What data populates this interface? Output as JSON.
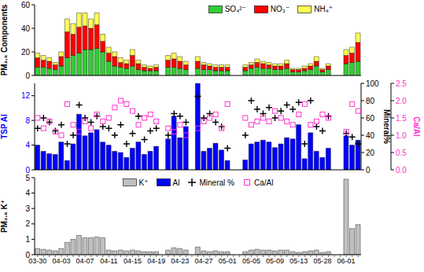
{
  "chart_data": [
    {
      "type": "bar",
      "stacked": true,
      "legend": "upper right",
      "tick_labels": "y",
      "grid": false,
      "ylabel": "PM₂.₅ Components",
      "ylim": [
        0,
        60
      ],
      "yticks": [
        0,
        20,
        40,
        60
      ],
      "categories": [
        "03-30",
        null,
        null,
        null,
        "04-03",
        null,
        null,
        null,
        "04-07",
        null,
        null,
        null,
        "04-11",
        null,
        null,
        null,
        "04-15",
        null,
        null,
        null,
        "04-19",
        null,
        null,
        null,
        "04-23",
        null,
        null,
        null,
        "04-27",
        null,
        null,
        null,
        "05-01",
        null,
        null,
        null,
        "05-05",
        null,
        null,
        null,
        "05-09",
        null,
        null,
        null,
        "05-13",
        null,
        null,
        null,
        "05-28",
        null,
        null,
        null,
        "06-01",
        null,
        null
      ],
      "series": [
        {
          "name": "SO₄²⁻",
          "color": "#33cc33",
          "values": [
            7,
            7,
            6,
            5,
            8,
            15,
            17,
            19,
            22,
            22,
            23,
            20,
            12,
            8,
            7,
            6,
            8,
            5,
            4,
            4,
            4,
            null,
            7,
            7,
            6,
            5,
            null,
            6,
            5,
            5,
            4,
            4,
            4,
            null,
            null,
            4,
            6,
            7,
            6,
            6,
            5,
            5,
            6,
            3,
            3,
            4,
            5,
            8,
            3,
            5,
            null,
            null,
            10,
            11,
            12
          ]
        },
        {
          "name": "NO₃⁻",
          "color": "#ff0000",
          "values": [
            8,
            6,
            6,
            4,
            8,
            22,
            18,
            22,
            20,
            18,
            20,
            9,
            7,
            8,
            4,
            4,
            9,
            5,
            3,
            2,
            3,
            null,
            6,
            7,
            6,
            4,
            null,
            6,
            4,
            3,
            3,
            3,
            3,
            null,
            null,
            3,
            3,
            4,
            4,
            3,
            3,
            3,
            4,
            2,
            2,
            2,
            3,
            4,
            2,
            3,
            null,
            null,
            7,
            8,
            16
          ]
        },
        {
          "name": "NH₄⁺",
          "color": "#ffff55",
          "values": [
            4,
            4,
            3,
            2,
            4,
            11,
            9,
            12,
            11,
            8,
            10,
            6,
            5,
            4,
            4,
            3,
            5,
            3,
            2,
            2,
            2,
            null,
            4,
            5,
            4,
            3,
            null,
            4,
            2,
            2,
            2,
            2,
            2,
            null,
            null,
            2,
            2,
            3,
            2,
            2,
            2,
            2,
            3,
            1,
            1,
            2,
            2,
            4,
            1,
            2,
            null,
            null,
            5,
            5,
            8
          ]
        }
      ]
    },
    {
      "type": "bar",
      "tick_labels": "y",
      "grid": false,
      "ylabel": "TSP Al",
      "ylim": [
        0,
        14
      ],
      "yticks": [
        0,
        4,
        8,
        12
      ],
      "y2label": "Mineral%",
      "y2lim": [
        0,
        100
      ],
      "y2ticks": [
        0,
        20,
        40,
        60,
        80,
        100
      ],
      "y3label": "Ca/Al",
      "y3lim": [
        0,
        2.5
      ],
      "y3ticks": [
        {
          "value": 0,
          "label": "0.0"
        },
        0.5,
        {
          "value": 1,
          "label": "1.0"
        },
        1.5,
        {
          "value": 2,
          "label": "2.0"
        },
        2.5
      ],
      "categories": [
        "03-30",
        null,
        null,
        null,
        "04-03",
        null,
        null,
        null,
        "04-07",
        null,
        null,
        null,
        "04-11",
        null,
        null,
        null,
        "04-15",
        null,
        null,
        null,
        "04-19",
        null,
        null,
        null,
        "04-23",
        null,
        null,
        null,
        "04-27",
        null,
        null,
        null,
        "05-01",
        null,
        null,
        null,
        "05-05",
        null,
        null,
        null,
        "05-09",
        null,
        null,
        null,
        "05-13",
        null,
        null,
        null,
        "05-28",
        null,
        null,
        null,
        "06-01",
        null,
        null
      ],
      "series": [
        {
          "name": "Al",
          "type": "bar",
          "color": "#0000ff",
          "values": [
            4,
            3,
            2.6,
            2.5,
            4.5,
            1.5,
            4.2,
            9,
            5.5,
            6,
            6.5,
            4.5,
            4,
            3,
            2.8,
            2,
            3.5,
            4.5,
            2.5,
            3,
            3.8,
            null,
            5,
            8.7,
            5.2,
            7,
            null,
            14,
            3,
            3.5,
            4.3,
            3.2,
            1.5,
            null,
            null,
            1.6,
            4.2,
            4.5,
            4.8,
            4.5,
            3.6,
            4.2,
            5.2,
            5,
            7.3,
            1.8,
            6,
            3,
            2,
            3.5,
            null,
            null,
            5.5,
            4,
            4.8
          ]
        },
        {
          "name": "Mineral %",
          "type": "scatter",
          "marker": "plus",
          "axis": "y2",
          "color": "#000000",
          "values": [
            48,
            60,
            55,
            45,
            52,
            30,
            40,
            75,
            60,
            55,
            62,
            50,
            48,
            40,
            52,
            30,
            42,
            62,
            35,
            45,
            48,
            null,
            40,
            65,
            62,
            55,
            null,
            85,
            60,
            65,
            55,
            50,
            25,
            null,
            null,
            40,
            80,
            70,
            65,
            72,
            60,
            68,
            75,
            70,
            78,
            30,
            80,
            50,
            45,
            62,
            null,
            null,
            42,
            38,
            30
          ]
        },
        {
          "name": "Ca/Al",
          "type": "scatter",
          "marker": "square",
          "axis": "y3",
          "color": "#ff33cc",
          "values": [
            1.5,
            1.2,
            1.4,
            1.1,
            1,
            1.9,
            1.3,
            1.1,
            1.4,
            1.2,
            1.6,
            1.4,
            1.5,
            1.8,
            2,
            1.9,
            1.7,
            1.3,
            1.5,
            1.6,
            1.4,
            null,
            1.2,
            1.1,
            1.3,
            1,
            null,
            1.2,
            1.4,
            1.5,
            1.6,
            1.2,
            1.9,
            null,
            null,
            1.5,
            1.3,
            1.4,
            1.5,
            1.4,
            1.7,
            1.5,
            1.4,
            1.3,
            1.6,
            1.9,
            1.3,
            1.4,
            1.6,
            1.5,
            null,
            null,
            1.1,
            1.9,
            1.7
          ]
        }
      ]
    },
    {
      "type": "bar",
      "legend": "upper center",
      "grid": false,
      "ylabel": "PM₂.₅ K⁺",
      "ylim": [
        0,
        5
      ],
      "yticks": [
        0,
        1,
        2,
        3,
        4,
        5
      ],
      "categories": [
        "03-30",
        null,
        null,
        null,
        "04-03",
        null,
        null,
        null,
        "04-07",
        null,
        null,
        null,
        "04-11",
        null,
        null,
        null,
        "04-15",
        null,
        null,
        null,
        "04-19",
        null,
        null,
        null,
        "04-23",
        null,
        null,
        null,
        "04-27",
        null,
        null,
        null,
        "05-01",
        null,
        null,
        null,
        "05-05",
        null,
        null,
        null,
        "05-09",
        null,
        null,
        null,
        "05-13",
        null,
        null,
        null,
        "05-28",
        null,
        null,
        null,
        "06-01",
        null,
        null
      ],
      "series": [
        {
          "name": "K⁺",
          "color": "#c0c0c0",
          "values": [
            0.4,
            0.35,
            0.3,
            0.25,
            0.4,
            0.8,
            1,
            1.25,
            1.1,
            1.1,
            1.15,
            1.1,
            0.3,
            0.25,
            0.3,
            0.25,
            0.3,
            0.25,
            0.2,
            0.2,
            0.2,
            null,
            0.3,
            0.45,
            0.4,
            0.3,
            null,
            0.5,
            0.25,
            0.2,
            0.25,
            0.2,
            0.2,
            null,
            null,
            0.2,
            0.3,
            0.35,
            0.3,
            0.3,
            0.25,
            0.3,
            0.3,
            0.2,
            0.15,
            0.2,
            0.25,
            0.3,
            0.15,
            0.2,
            null,
            null,
            4.9,
            1.7,
            1.95
          ]
        }
      ]
    }
  ]
}
